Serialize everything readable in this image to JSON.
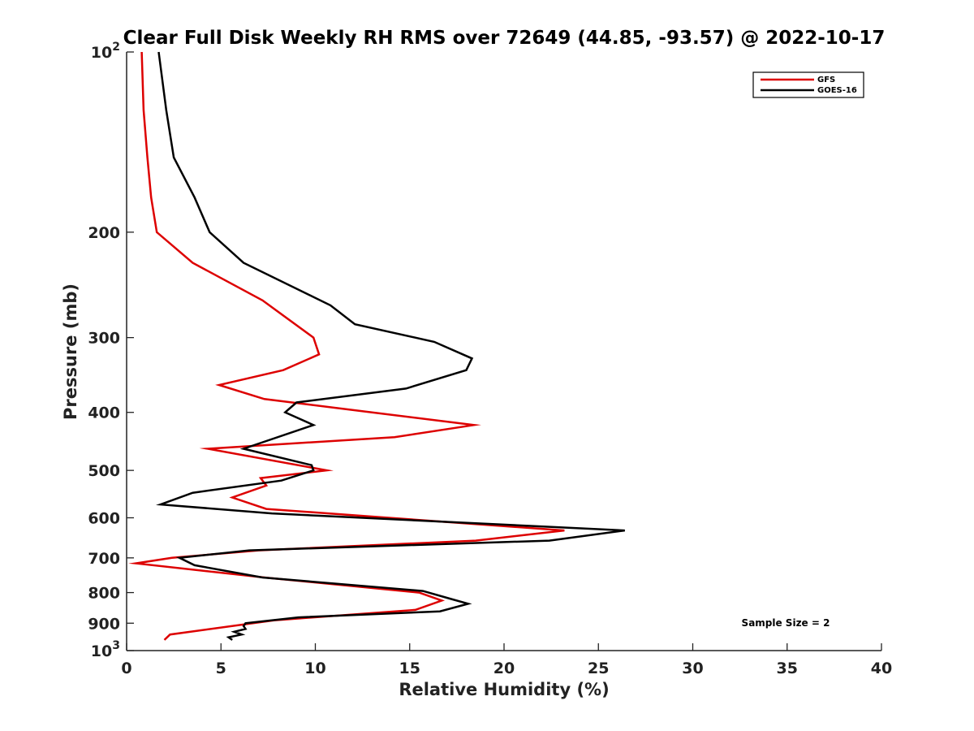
{
  "chart_data": {
    "type": "line",
    "title": "Clear Full Disk Weekly RH RMS over 72649 (44.85, -93.57) @ 2022-10-17",
    "xlabel": "Relative Humidity (%)",
    "ylabel": "Pressure (mb)",
    "xlim": [
      0,
      40
    ],
    "ylim": [
      1000,
      100
    ],
    "y_scale": "log",
    "y_direction": "reversed",
    "x_ticks": [
      0,
      5,
      10,
      15,
      20,
      25,
      30,
      35,
      40
    ],
    "x_tick_labels": [
      "0",
      "5",
      "10",
      "15",
      "20",
      "25",
      "30",
      "35",
      "40"
    ],
    "y_ticks": [
      100,
      200,
      300,
      400,
      500,
      600,
      700,
      800,
      900,
      1000
    ],
    "y_tick_labels": [
      {
        "base": "10",
        "exp": "2"
      },
      {
        "text": "200"
      },
      {
        "text": "300"
      },
      {
        "text": "400"
      },
      {
        "text": "500"
      },
      {
        "text": "600"
      },
      {
        "text": "700"
      },
      {
        "text": "800"
      },
      {
        "text": "900"
      },
      {
        "base": "10",
        "exp": "3"
      }
    ],
    "grid": false,
    "legend_position": "top-right",
    "annotation": "Sample Size = 2",
    "series": [
      {
        "name": "GFS",
        "color": "#dd0000",
        "points": [
          [
            0.8,
            100
          ],
          [
            0.9,
            125
          ],
          [
            1.1,
            150
          ],
          [
            1.3,
            175
          ],
          [
            1.6,
            200
          ],
          [
            3.5,
            225
          ],
          [
            7.2,
            260
          ],
          [
            9.9,
            300
          ],
          [
            10.2,
            320
          ],
          [
            8.3,
            340
          ],
          [
            4.9,
            360
          ],
          [
            7.3,
            380
          ],
          [
            18.4,
            420
          ],
          [
            14.2,
            440
          ],
          [
            4.3,
            460
          ],
          [
            10.6,
            500
          ],
          [
            7.1,
            515
          ],
          [
            7.4,
            530
          ],
          [
            5.6,
            555
          ],
          [
            7.4,
            580
          ],
          [
            23.2,
            630
          ],
          [
            18.5,
            655
          ],
          [
            7.0,
            680
          ],
          [
            2.4,
            700
          ],
          [
            0.5,
            715
          ],
          [
            7.3,
            755
          ],
          [
            15.5,
            800
          ],
          [
            16.7,
            825
          ],
          [
            15.3,
            855
          ],
          [
            7.8,
            890
          ],
          [
            2.3,
            940
          ],
          [
            2.0,
            960
          ]
        ]
      },
      {
        "name": "GOES-16",
        "color": "#000000",
        "points": [
          [
            1.7,
            100
          ],
          [
            2.1,
            125
          ],
          [
            2.5,
            150
          ],
          [
            3.6,
            175
          ],
          [
            4.4,
            200
          ],
          [
            6.2,
            225
          ],
          [
            10.8,
            265
          ],
          [
            12.1,
            285
          ],
          [
            16.3,
            305
          ],
          [
            18.3,
            325
          ],
          [
            18.0,
            340
          ],
          [
            14.8,
            365
          ],
          [
            9.0,
            385
          ],
          [
            8.4,
            400
          ],
          [
            9.9,
            420
          ],
          [
            6.2,
            460
          ],
          [
            9.8,
            490
          ],
          [
            9.9,
            500
          ],
          [
            8.2,
            520
          ],
          [
            3.5,
            545
          ],
          [
            1.8,
            570
          ],
          [
            7.7,
            590
          ],
          [
            26.4,
            630
          ],
          [
            22.4,
            655
          ],
          [
            6.5,
            680
          ],
          [
            2.8,
            700
          ],
          [
            3.6,
            720
          ],
          [
            7.2,
            755
          ],
          [
            15.7,
            795
          ],
          [
            17.2,
            820
          ],
          [
            18.1,
            835
          ],
          [
            16.6,
            860
          ],
          [
            9.1,
            880
          ],
          [
            6.3,
            900
          ],
          [
            6.2,
            910
          ],
          [
            6.3,
            920
          ],
          [
            5.7,
            930
          ],
          [
            6.1,
            940
          ],
          [
            5.4,
            950
          ],
          [
            5.6,
            960
          ]
        ]
      }
    ]
  }
}
